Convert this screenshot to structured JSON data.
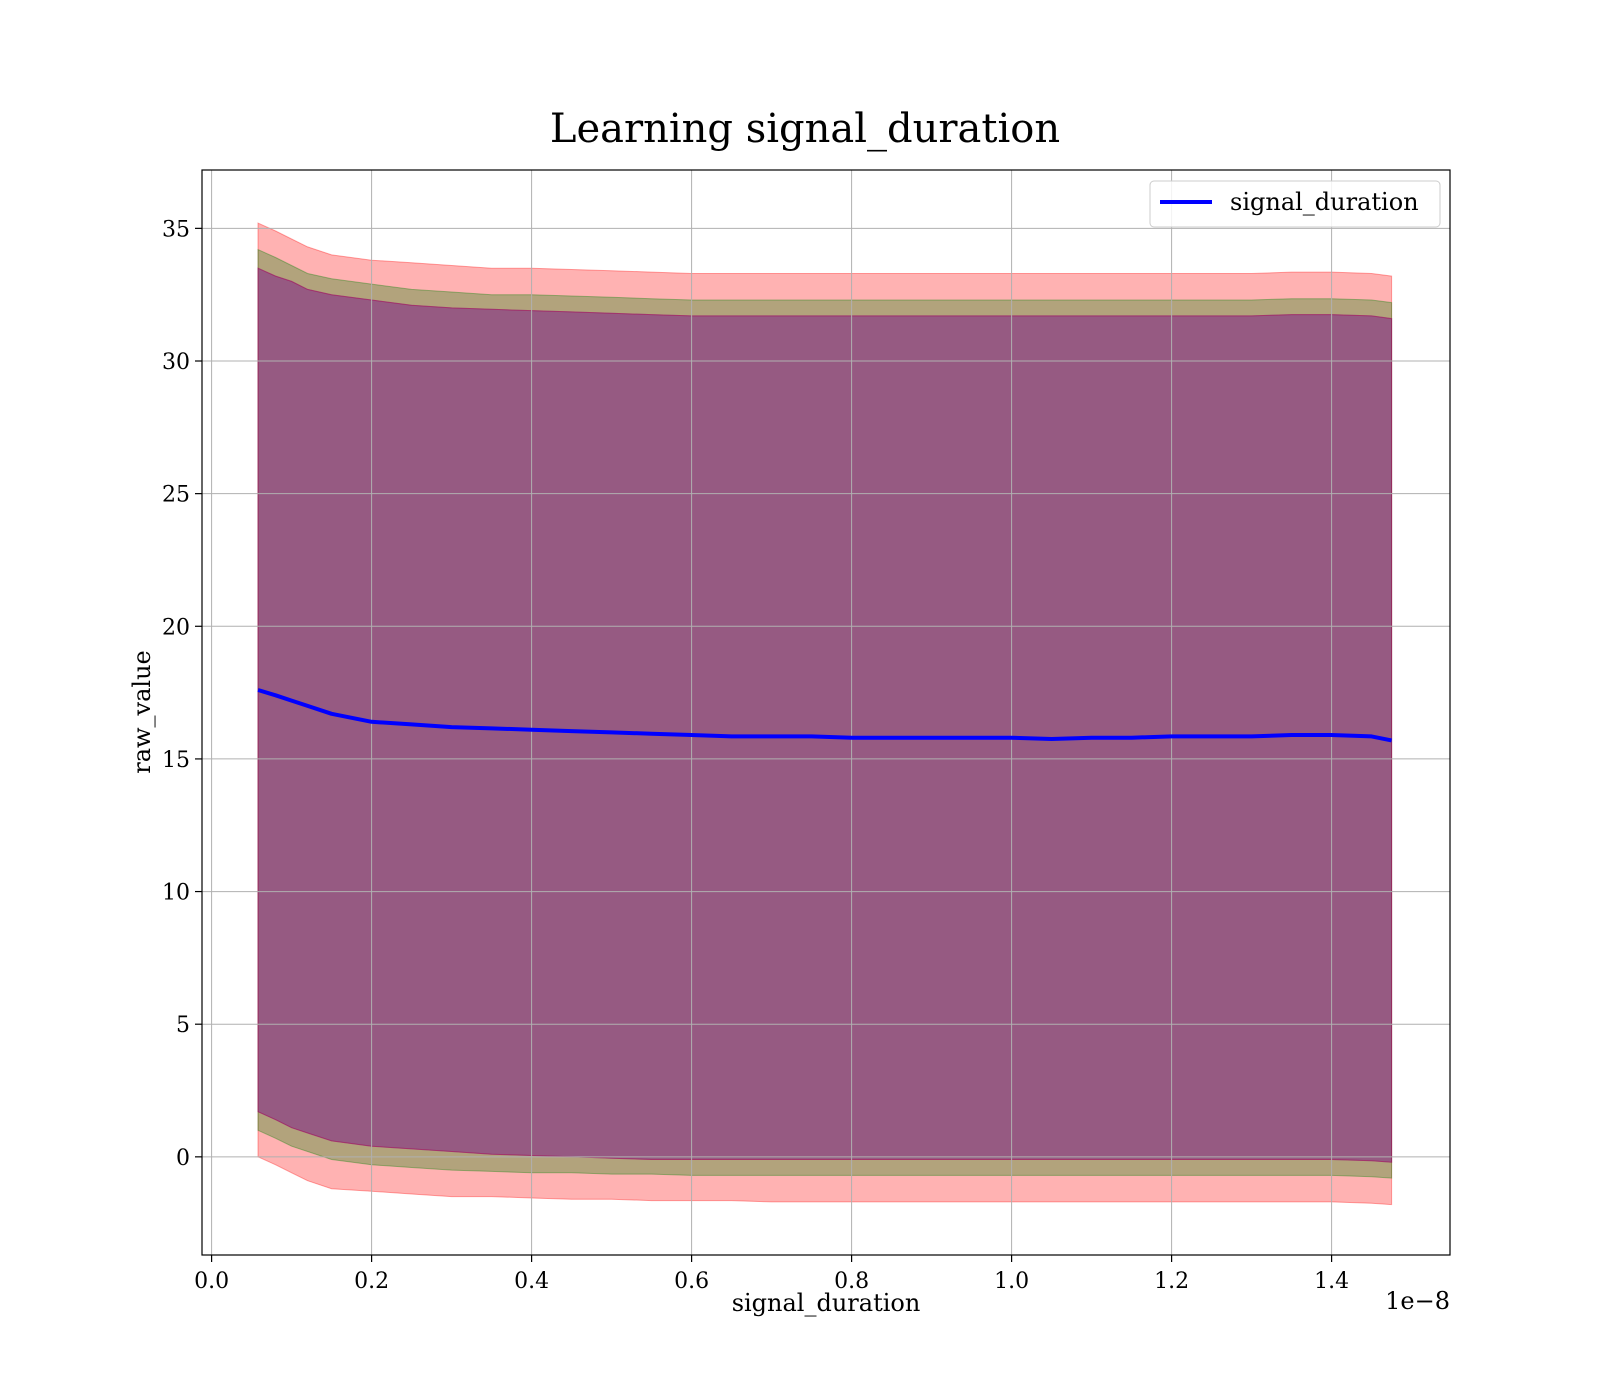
{
  "chart_data": {
    "type": "line",
    "title": "Learning signal_duration",
    "xlabel": "signal_duration",
    "ylabel": "raw_value",
    "x_offset_label": "1e−8",
    "xlim": [
      -0.012,
      1.548
    ],
    "ylim": [
      -3.7,
      37.2
    ],
    "grid": true,
    "legend_position": "top-right",
    "x_ticks": [
      {
        "value": 0.0,
        "label": "0.0"
      },
      {
        "value": 0.2,
        "label": "0.2"
      },
      {
        "value": 0.4,
        "label": "0.4"
      },
      {
        "value": 0.6,
        "label": "0.6"
      },
      {
        "value": 0.8,
        "label": "0.8"
      },
      {
        "value": 1.0,
        "label": "1.0"
      },
      {
        "value": 1.2,
        "label": "1.2"
      },
      {
        "value": 1.4,
        "label": "1.4"
      }
    ],
    "y_ticks": [
      {
        "value": 0,
        "label": "0"
      },
      {
        "value": 5,
        "label": "5"
      },
      {
        "value": 10,
        "label": "10"
      },
      {
        "value": 15,
        "label": "15"
      },
      {
        "value": 20,
        "label": "20"
      },
      {
        "value": 25,
        "label": "25"
      },
      {
        "value": 30,
        "label": "30"
      },
      {
        "value": 35,
        "label": "35"
      }
    ],
    "x": [
      0.058,
      0.08,
      0.1,
      0.12,
      0.15,
      0.2,
      0.25,
      0.3,
      0.35,
      0.4,
      0.45,
      0.5,
      0.55,
      0.6,
      0.65,
      0.7,
      0.75,
      0.8,
      0.85,
      0.9,
      0.95,
      1.0,
      1.05,
      1.1,
      1.15,
      1.2,
      1.25,
      1.3,
      1.35,
      1.4,
      1.45,
      1.475
    ],
    "series": [
      {
        "name": "signal_duration",
        "color": "#0000ff",
        "values": [
          17.6,
          17.4,
          17.2,
          17.0,
          16.7,
          16.4,
          16.3,
          16.2,
          16.15,
          16.1,
          16.05,
          16.0,
          15.95,
          15.9,
          15.85,
          15.85,
          15.85,
          15.8,
          15.8,
          15.8,
          15.8,
          15.8,
          15.75,
          15.8,
          15.8,
          15.85,
          15.85,
          15.85,
          15.9,
          15.9,
          15.85,
          15.7
        ]
      }
    ],
    "bands": [
      {
        "color": "#ff0000",
        "opacity": 0.3,
        "upper": [
          35.2,
          34.9,
          34.6,
          34.3,
          34.0,
          33.8,
          33.7,
          33.6,
          33.5,
          33.5,
          33.45,
          33.4,
          33.35,
          33.3,
          33.3,
          33.3,
          33.3,
          33.3,
          33.3,
          33.3,
          33.3,
          33.3,
          33.3,
          33.3,
          33.3,
          33.3,
          33.3,
          33.3,
          33.35,
          33.35,
          33.3,
          33.2
        ],
        "lower": [
          0.0,
          -0.3,
          -0.6,
          -0.9,
          -1.2,
          -1.3,
          -1.4,
          -1.5,
          -1.5,
          -1.55,
          -1.6,
          -1.6,
          -1.65,
          -1.65,
          -1.65,
          -1.7,
          -1.7,
          -1.7,
          -1.7,
          -1.7,
          -1.7,
          -1.7,
          -1.7,
          -1.7,
          -1.7,
          -1.7,
          -1.7,
          -1.7,
          -1.7,
          -1.7,
          -1.75,
          -1.8
        ]
      },
      {
        "color": "#008000",
        "opacity": 0.3,
        "upper": [
          34.2,
          33.9,
          33.6,
          33.3,
          33.1,
          32.9,
          32.7,
          32.6,
          32.5,
          32.5,
          32.45,
          32.4,
          32.35,
          32.3,
          32.3,
          32.3,
          32.3,
          32.3,
          32.3,
          32.3,
          32.3,
          32.3,
          32.3,
          32.3,
          32.3,
          32.3,
          32.3,
          32.3,
          32.35,
          32.35,
          32.3,
          32.2
        ],
        "lower": [
          1.0,
          0.7,
          0.4,
          0.2,
          -0.1,
          -0.3,
          -0.4,
          -0.5,
          -0.55,
          -0.6,
          -0.6,
          -0.65,
          -0.65,
          -0.7,
          -0.7,
          -0.7,
          -0.7,
          -0.7,
          -0.7,
          -0.7,
          -0.7,
          -0.7,
          -0.7,
          -0.7,
          -0.7,
          -0.7,
          -0.7,
          -0.7,
          -0.7,
          -0.7,
          -0.75,
          -0.8
        ]
      },
      {
        "color": "#0000ff",
        "opacity": 0.3,
        "upper": [
          33.5,
          33.2,
          33.0,
          32.7,
          32.5,
          32.3,
          32.1,
          32.0,
          31.95,
          31.9,
          31.85,
          31.8,
          31.75,
          31.7,
          31.7,
          31.7,
          31.7,
          31.7,
          31.7,
          31.7,
          31.7,
          31.7,
          31.7,
          31.7,
          31.7,
          31.7,
          31.7,
          31.7,
          31.75,
          31.75,
          31.7,
          31.6
        ],
        "lower": [
          1.7,
          1.4,
          1.1,
          0.9,
          0.6,
          0.4,
          0.3,
          0.2,
          0.1,
          0.05,
          0.0,
          -0.05,
          -0.1,
          -0.1,
          -0.1,
          -0.1,
          -0.1,
          -0.1,
          -0.1,
          -0.1,
          -0.1,
          -0.1,
          -0.1,
          -0.1,
          -0.1,
          -0.1,
          -0.1,
          -0.1,
          -0.1,
          -0.1,
          -0.15,
          -0.2
        ]
      },
      {
        "color": "#ff0000",
        "opacity": 0.2,
        "upper": [
          33.5,
          33.2,
          33.0,
          32.7,
          32.5,
          32.3,
          32.1,
          32.0,
          31.95,
          31.9,
          31.85,
          31.8,
          31.75,
          31.7,
          31.7,
          31.7,
          31.7,
          31.7,
          31.7,
          31.7,
          31.7,
          31.7,
          31.7,
          31.7,
          31.7,
          31.7,
          31.7,
          31.7,
          31.75,
          31.75,
          31.7,
          31.6
        ],
        "lower": [
          1.7,
          1.4,
          1.1,
          0.9,
          0.6,
          0.4,
          0.3,
          0.2,
          0.1,
          0.05,
          0.0,
          -0.05,
          -0.1,
          -0.1,
          -0.1,
          -0.1,
          -0.1,
          -0.1,
          -0.1,
          -0.1,
          -0.1,
          -0.1,
          -0.1,
          -0.1,
          -0.1,
          -0.1,
          -0.1,
          -0.1,
          -0.1,
          -0.1,
          -0.15,
          -0.2
        ]
      }
    ],
    "legend": [
      {
        "label": "signal_duration",
        "color": "#0000ff"
      }
    ]
  }
}
